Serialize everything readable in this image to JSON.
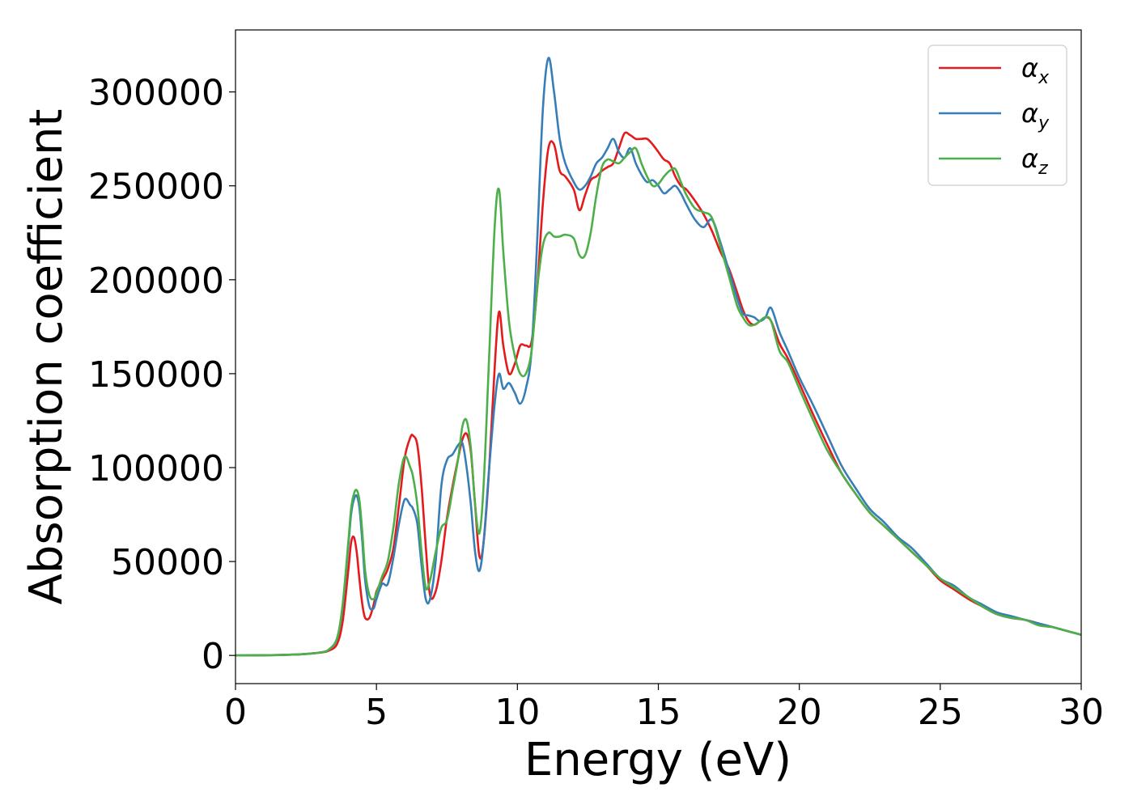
{
  "chart_data": {
    "type": "line",
    "xlabel": "Energy (eV)",
    "ylabel": "Absorption coefficient",
    "xlim": [
      0,
      30
    ],
    "ylim": [
      -15000,
      333000
    ],
    "xticks": [
      0,
      5,
      10,
      15,
      20,
      25,
      30
    ],
    "xtick_labels": [
      "0",
      "5",
      "10",
      "15",
      "20",
      "25",
      "30"
    ],
    "yticks": [
      0,
      50000,
      100000,
      150000,
      200000,
      250000,
      300000
    ],
    "ytick_labels": [
      "0",
      "50000",
      "100000",
      "150000",
      "200000",
      "250000",
      "300000"
    ],
    "legend_position": "top-right",
    "series": [
      {
        "name": "α_x",
        "symbol": "α",
        "subscript": "x",
        "color": "#e41a1c",
        "x": [
          0,
          1,
          2,
          2.5,
          3,
          3.3,
          3.6,
          3.8,
          4.0,
          4.1,
          4.2,
          4.3,
          4.4,
          4.5,
          4.6,
          4.75,
          4.9,
          5.0,
          5.2,
          5.4,
          5.6,
          5.8,
          6.0,
          6.2,
          6.3,
          6.45,
          6.6,
          6.75,
          6.9,
          7.1,
          7.3,
          7.5,
          7.7,
          7.9,
          8.05,
          8.2,
          8.35,
          8.5,
          8.65,
          8.8,
          9.0,
          9.2,
          9.35,
          9.5,
          9.7,
          9.9,
          10.1,
          10.3,
          10.5,
          10.7,
          10.9,
          11.1,
          11.3,
          11.5,
          11.7,
          12.0,
          12.2,
          12.4,
          12.6,
          12.8,
          13.0,
          13.2,
          13.4,
          13.6,
          13.8,
          14.0,
          14.2,
          14.4,
          14.6,
          14.8,
          15.0,
          15.2,
          15.4,
          15.6,
          15.8,
          16.0,
          16.3,
          16.6,
          16.9,
          17.2,
          17.5,
          17.8,
          18.0,
          18.2,
          18.4,
          18.6,
          18.8,
          19.0,
          19.3,
          19.6,
          20.0,
          20.5,
          21.0,
          21.5,
          22.0,
          22.5,
          23.0,
          23.5,
          24.0,
          24.5,
          25.0,
          25.5,
          26.0,
          26.5,
          27.0,
          27.5,
          28.0,
          28.5,
          29.0,
          29.5,
          30.0
        ],
        "y": [
          0,
          100,
          400,
          800,
          1500,
          2500,
          6000,
          18000,
          45000,
          60000,
          63000,
          55000,
          40000,
          27000,
          20000,
          20000,
          27000,
          34000,
          40000,
          46000,
          57000,
          80000,
          105000,
          116000,
          117000,
          112000,
          90000,
          58000,
          32000,
          34000,
          50000,
          73000,
          90000,
          105000,
          115000,
          118000,
          108000,
          80000,
          53000,
          60000,
          100000,
          155000,
          183000,
          165000,
          150000,
          155000,
          165000,
          165000,
          167000,
          195000,
          240000,
          270000,
          272000,
          258000,
          255000,
          248000,
          237000,
          245000,
          253000,
          255000,
          258000,
          260000,
          262000,
          270000,
          278000,
          277000,
          275000,
          275000,
          275000,
          272000,
          268000,
          264000,
          262000,
          255000,
          250000,
          248000,
          242000,
          235000,
          226000,
          215000,
          206000,
          193000,
          184000,
          178000,
          176000,
          178000,
          180000,
          178000,
          166000,
          158000,
          145000,
          128000,
          112000,
          97000,
          86000,
          76000,
          69000,
          62000,
          55000,
          48000,
          40000,
          35000,
          30000,
          26000,
          22000,
          20000,
          19000,
          17000,
          15000,
          13000,
          11000
        ]
      },
      {
        "name": "α_y",
        "symbol": "α",
        "subscript": "y",
        "color": "#377eb8",
        "x": [
          0,
          1,
          2,
          2.5,
          3,
          3.3,
          3.6,
          3.8,
          4.0,
          4.1,
          4.2,
          4.3,
          4.4,
          4.5,
          4.6,
          4.75,
          4.9,
          5.0,
          5.2,
          5.4,
          5.6,
          5.8,
          6.0,
          6.2,
          6.3,
          6.45,
          6.6,
          6.75,
          6.9,
          7.1,
          7.3,
          7.5,
          7.7,
          7.9,
          8.05,
          8.2,
          8.35,
          8.5,
          8.65,
          8.8,
          9.0,
          9.2,
          9.35,
          9.5,
          9.7,
          9.9,
          10.1,
          10.3,
          10.5,
          10.7,
          10.9,
          11.1,
          11.3,
          11.5,
          11.7,
          12.0,
          12.2,
          12.4,
          12.6,
          12.8,
          13.0,
          13.2,
          13.4,
          13.6,
          13.8,
          14.0,
          14.2,
          14.4,
          14.6,
          14.8,
          15.0,
          15.2,
          15.4,
          15.6,
          15.8,
          16.0,
          16.3,
          16.6,
          16.9,
          17.2,
          17.5,
          17.8,
          18.0,
          18.2,
          18.4,
          18.6,
          18.8,
          19.0,
          19.3,
          19.6,
          20.0,
          20.5,
          21.0,
          21.5,
          22.0,
          22.5,
          23.0,
          23.5,
          24.0,
          24.5,
          25.0,
          25.5,
          26.0,
          26.5,
          27.0,
          27.5,
          28.0,
          28.5,
          29.0,
          29.5,
          30.0
        ],
        "y": [
          0,
          100,
          400,
          800,
          1600,
          3000,
          9000,
          26000,
          58000,
          75000,
          83000,
          85000,
          78000,
          60000,
          40000,
          26000,
          25000,
          30000,
          38000,
          38000,
          52000,
          70000,
          83000,
          80000,
          78000,
          70000,
          48000,
          30000,
          30000,
          50000,
          90000,
          104000,
          107000,
          112000,
          113000,
          100000,
          80000,
          55000,
          45000,
          60000,
          100000,
          135000,
          150000,
          142000,
          145000,
          140000,
          134000,
          142000,
          162000,
          220000,
          290000,
          318000,
          300000,
          275000,
          262000,
          252000,
          248000,
          250000,
          255000,
          262000,
          265000,
          270000,
          275000,
          268000,
          265000,
          270000,
          262000,
          256000,
          252000,
          253000,
          250000,
          246000,
          248000,
          250000,
          246000,
          240000,
          232000,
          228000,
          232000,
          220000,
          205000,
          190000,
          182000,
          181000,
          180000,
          178000,
          180000,
          185000,
          172000,
          162000,
          148000,
          133000,
          117000,
          101000,
          89000,
          78000,
          71000,
          63000,
          57000,
          49000,
          41000,
          37000,
          31000,
          27000,
          23000,
          21000,
          19000,
          17000,
          15000,
          13000,
          11000
        ]
      },
      {
        "name": "α_z",
        "symbol": "α",
        "subscript": "z",
        "color": "#4daf4a",
        "x": [
          0,
          1,
          2,
          2.5,
          3,
          3.3,
          3.6,
          3.8,
          4.0,
          4.1,
          4.2,
          4.3,
          4.4,
          4.5,
          4.6,
          4.75,
          4.9,
          5.0,
          5.2,
          5.4,
          5.6,
          5.8,
          6.0,
          6.2,
          6.3,
          6.45,
          6.6,
          6.75,
          6.9,
          7.1,
          7.3,
          7.5,
          7.7,
          7.9,
          8.05,
          8.2,
          8.35,
          8.5,
          8.65,
          8.8,
          9.0,
          9.2,
          9.35,
          9.5,
          9.7,
          9.9,
          10.1,
          10.3,
          10.5,
          10.7,
          10.9,
          11.1,
          11.3,
          11.5,
          11.7,
          12.0,
          12.2,
          12.4,
          12.6,
          12.8,
          13.0,
          13.2,
          13.4,
          13.6,
          13.8,
          14.0,
          14.2,
          14.4,
          14.6,
          14.8,
          15.0,
          15.2,
          15.4,
          15.6,
          15.8,
          16.0,
          16.3,
          16.6,
          16.9,
          17.2,
          17.5,
          17.8,
          18.0,
          18.2,
          18.4,
          18.6,
          18.8,
          19.0,
          19.3,
          19.6,
          20.0,
          20.5,
          21.0,
          21.5,
          22.0,
          22.5,
          23.0,
          23.5,
          24.0,
          24.5,
          25.0,
          25.5,
          26.0,
          26.5,
          27.0,
          27.5,
          28.0,
          28.5,
          29.0,
          29.5,
          30.0
        ],
        "y": [
          0,
          100,
          400,
          800,
          1600,
          3000,
          9000,
          27000,
          60000,
          78000,
          86000,
          88000,
          82000,
          65000,
          45000,
          32000,
          30000,
          33000,
          42000,
          50000,
          68000,
          92000,
          106000,
          100000,
          95000,
          80000,
          55000,
          36000,
          40000,
          55000,
          68000,
          72000,
          88000,
          105000,
          122000,
          125000,
          110000,
          80000,
          65000,
          90000,
          160000,
          230000,
          248000,
          215000,
          178000,
          160000,
          150000,
          150000,
          162000,
          195000,
          218000,
          225000,
          223000,
          223000,
          224000,
          222000,
          213000,
          213000,
          225000,
          245000,
          260000,
          264000,
          263000,
          262000,
          265000,
          268000,
          270000,
          262000,
          255000,
          250000,
          251000,
          255000,
          258000,
          259000,
          252000,
          245000,
          238000,
          236000,
          233000,
          218000,
          202000,
          186000,
          180000,
          176000,
          176000,
          178000,
          180000,
          178000,
          162000,
          156000,
          142000,
          125000,
          109000,
          97000,
          86000,
          76000,
          69000,
          62000,
          55000,
          48000,
          41000,
          36000,
          31000,
          26000,
          22000,
          20000,
          19000,
          16000,
          15000,
          13000,
          11000
        ]
      }
    ]
  }
}
